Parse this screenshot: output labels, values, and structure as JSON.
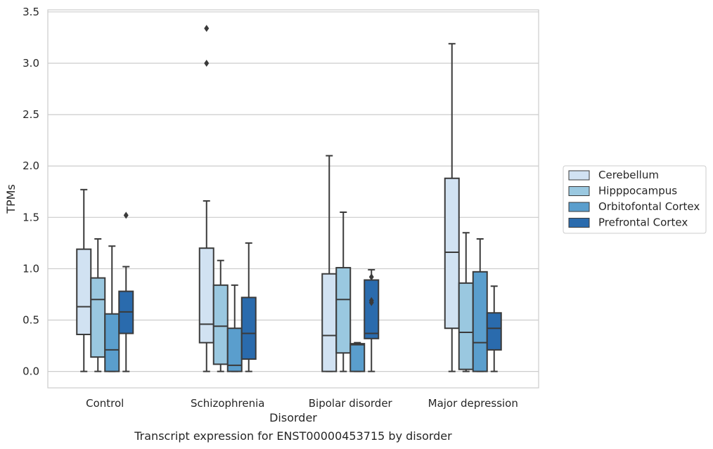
{
  "chart_data": {
    "type": "box",
    "xlabel": "Disorder",
    "ylabel": "TPMs",
    "caption": "Transcript expression for ENST00000453715 by disorder",
    "ylim": [
      -0.16,
      3.52
    ],
    "yticks": [
      "0.0",
      "0.5",
      "1.0",
      "1.5",
      "2.0",
      "2.5",
      "3.0",
      "3.5"
    ],
    "grid": true,
    "legend_position": "right",
    "categories": [
      "Control",
      "Schizophrenia",
      "Bipolar disorder",
      "Major depression"
    ],
    "series": [
      {
        "name": "Cerebellum",
        "color": "#d1e2f2",
        "boxes": [
          {
            "whislo": 0.0,
            "q1": 0.36,
            "med": 0.63,
            "q3": 1.19,
            "whishi": 1.77,
            "fliers": []
          },
          {
            "whislo": 0.0,
            "q1": 0.28,
            "med": 0.46,
            "q3": 1.2,
            "whishi": 1.66,
            "fliers": [
              3.0,
              3.34
            ]
          },
          {
            "whislo": 0.0,
            "q1": 0.0,
            "med": 0.35,
            "q3": 0.95,
            "whishi": 2.1,
            "fliers": []
          },
          {
            "whislo": 0.0,
            "q1": 0.42,
            "med": 1.16,
            "q3": 1.88,
            "whishi": 3.19,
            "fliers": []
          }
        ]
      },
      {
        "name": "Hipppocampus",
        "color": "#9ac8e0",
        "boxes": [
          {
            "whislo": 0.0,
            "q1": 0.14,
            "med": 0.7,
            "q3": 0.91,
            "whishi": 1.29,
            "fliers": []
          },
          {
            "whislo": 0.0,
            "q1": 0.07,
            "med": 0.44,
            "q3": 0.84,
            "whishi": 1.08,
            "fliers": []
          },
          {
            "whislo": 0.0,
            "q1": 0.18,
            "med": 0.7,
            "q3": 1.01,
            "whishi": 1.55,
            "fliers": []
          },
          {
            "whislo": 0.0,
            "q1": 0.02,
            "med": 0.38,
            "q3": 0.86,
            "whishi": 1.35,
            "fliers": []
          }
        ]
      },
      {
        "name": "Orbitofontal Cortex",
        "color": "#5a9ecd",
        "boxes": [
          {
            "whislo": 0.0,
            "q1": 0.0,
            "med": 0.21,
            "q3": 0.56,
            "whishi": 1.22,
            "fliers": []
          },
          {
            "whislo": 0.0,
            "q1": 0.0,
            "med": 0.06,
            "q3": 0.42,
            "whishi": 0.84,
            "fliers": []
          },
          {
            "whislo": 0.0,
            "q1": 0.0,
            "med": 0.26,
            "q3": 0.27,
            "whishi": 0.28,
            "fliers": []
          },
          {
            "whislo": 0.0,
            "q1": 0.0,
            "med": 0.28,
            "q3": 0.97,
            "whishi": 1.29,
            "fliers": []
          }
        ]
      },
      {
        "name": "Prefrontal Cortex",
        "color": "#2a6bad",
        "boxes": [
          {
            "whislo": 0.0,
            "q1": 0.37,
            "med": 0.58,
            "q3": 0.78,
            "whishi": 1.02,
            "fliers": [
              1.52
            ]
          },
          {
            "whislo": 0.0,
            "q1": 0.12,
            "med": 0.37,
            "q3": 0.72,
            "whishi": 1.25,
            "fliers": []
          },
          {
            "whislo": 0.0,
            "q1": 0.32,
            "med": 0.37,
            "q3": 0.89,
            "whishi": 0.99,
            "fliers": [
              0.67,
              0.69,
              0.92
            ]
          },
          {
            "whislo": 0.0,
            "q1": 0.21,
            "med": 0.42,
            "q3": 0.57,
            "whishi": 0.83,
            "fliers": []
          }
        ]
      }
    ]
  }
}
